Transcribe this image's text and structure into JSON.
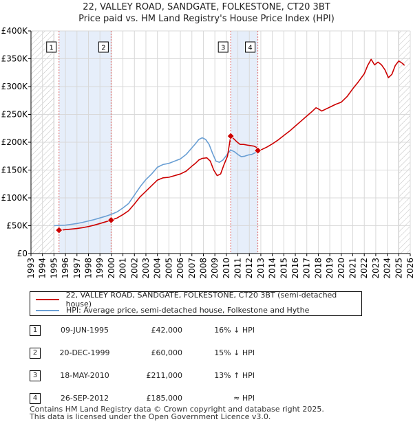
{
  "chart_data": {
    "type": "line",
    "title": "22, VALLEY ROAD, SANDGATE, FOLKESTONE, CT20 3BT",
    "subtitle": "Price paid vs. HM Land Registry's House Price Index (HPI)",
    "xlabel": "",
    "ylabel": "",
    "xlim": [
      1993,
      2026
    ],
    "ylim": [
      0,
      400000
    ],
    "x_ticks": [
      "1993",
      "1994",
      "1995",
      "1996",
      "1997",
      "1998",
      "1999",
      "2000",
      "2001",
      "2002",
      "2003",
      "2004",
      "2005",
      "2006",
      "2007",
      "2008",
      "2009",
      "2010",
      "2011",
      "2012",
      "2013",
      "2014",
      "2015",
      "2016",
      "2017",
      "2018",
      "2019",
      "2020",
      "2021",
      "2022",
      "2023",
      "2024",
      "2025",
      "2026"
    ],
    "y_ticks": [
      {
        "value": 0,
        "label": "£0"
      },
      {
        "value": 50000,
        "label": "£50K"
      },
      {
        "value": 100000,
        "label": "£100K"
      },
      {
        "value": 150000,
        "label": "£150K"
      },
      {
        "value": 200000,
        "label": "£200K"
      },
      {
        "value": 250000,
        "label": "£250K"
      },
      {
        "value": 300000,
        "label": "£300K"
      },
      {
        "value": 350000,
        "label": "£350K"
      },
      {
        "value": 400000,
        "label": "£400K"
      }
    ],
    "grid": true,
    "hatched_periods": [
      [
        1993,
        1995.0
      ],
      [
        2025.0,
        2026
      ]
    ],
    "shaded_periods": [
      [
        1995.44,
        1999.97
      ],
      [
        2010.38,
        2012.74
      ]
    ],
    "series": [
      {
        "name": "22, VALLEY ROAD, SANDGATE, FOLKESTONE, CT20 3BT (semi-detached house)",
        "color": "#cc0000",
        "x": [
          1995.44,
          1995.8,
          1996.0,
          1996.5,
          1997.0,
          1997.5,
          1998.0,
          1998.5,
          1999.0,
          1999.5,
          1999.97,
          2000.5,
          2001.0,
          2001.5,
          2002.0,
          2002.5,
          2003.0,
          2003.5,
          2004.0,
          2004.5,
          2005.0,
          2005.5,
          2006.0,
          2006.5,
          2007.0,
          2007.3,
          2007.6,
          2007.9,
          2008.3,
          2008.6,
          2008.9,
          2009.2,
          2009.5,
          2009.8,
          2010.1,
          2010.38,
          2010.6,
          2010.9,
          2011.2,
          2011.5,
          2011.8,
          2012.1,
          2012.4,
          2012.6,
          2012.74,
          2013.0,
          2013.5,
          2014.0,
          2014.5,
          2015.0,
          2015.5,
          2016.0,
          2016.5,
          2017.0,
          2017.5,
          2017.8,
          2018.0,
          2018.3,
          2018.6,
          2019.0,
          2019.5,
          2020.0,
          2020.5,
          2021.0,
          2021.5,
          2022.0,
          2022.3,
          2022.6,
          2022.9,
          2023.2,
          2023.5,
          2023.8,
          2024.1,
          2024.4,
          2024.7,
          2025.0,
          2025.3,
          2025.5
        ],
        "y": [
          42000,
          42500,
          43000,
          44000,
          45000,
          46500,
          48500,
          51000,
          54000,
          57000,
          60000,
          64000,
          70000,
          77000,
          89000,
          102000,
          112000,
          122000,
          132000,
          136000,
          137000,
          140000,
          143000,
          148000,
          157000,
          162000,
          168000,
          171000,
          172000,
          166000,
          150000,
          140000,
          143000,
          160000,
          175000,
          211000,
          207000,
          201000,
          196000,
          196000,
          195000,
          194000,
          193000,
          191000,
          185000,
          186000,
          191000,
          197000,
          204000,
          212000,
          220000,
          229000,
          238000,
          247000,
          256000,
          262000,
          260000,
          256000,
          259000,
          263000,
          268000,
          272000,
          282000,
          296000,
          309000,
          323000,
          338000,
          349000,
          339000,
          344000,
          339000,
          330000,
          316000,
          322000,
          338000,
          346000,
          342000,
          338000
        ]
      },
      {
        "name": "HPI: Average price, semi-detached house, Folkestone and Hythe",
        "color": "#6a9fd4",
        "x": [
          1995.0,
          1995.5,
          1996.0,
          1996.5,
          1997.0,
          1997.5,
          1998.0,
          1998.5,
          1999.0,
          1999.5,
          2000.0,
          2000.5,
          2001.0,
          2001.5,
          2002.0,
          2002.5,
          2003.0,
          2003.5,
          2004.0,
          2004.5,
          2005.0,
          2005.5,
          2006.0,
          2006.5,
          2007.0,
          2007.3,
          2007.6,
          2007.9,
          2008.2,
          2008.5,
          2008.8,
          2009.1,
          2009.4,
          2009.7,
          2010.0,
          2010.38,
          2010.7,
          2011.0,
          2011.3,
          2011.6,
          2011.9,
          2012.2,
          2012.5,
          2012.74
        ],
        "y": [
          50000,
          50500,
          51000,
          52500,
          54000,
          56000,
          58500,
          61000,
          64000,
          67000,
          70500,
          75000,
          82000,
          90000,
          105000,
          120000,
          133000,
          143000,
          155000,
          160000,
          162000,
          166000,
          170000,
          178000,
          190000,
          197000,
          205000,
          208000,
          205000,
          196000,
          180000,
          166000,
          164000,
          168000,
          176000,
          186000,
          183000,
          178000,
          174000,
          175000,
          177000,
          178000,
          181000,
          185000
        ]
      }
    ],
    "sales": [
      {
        "num": "1",
        "x": 1995.44,
        "price": 42000
      },
      {
        "num": "2",
        "x": 1999.97,
        "price": 60000
      },
      {
        "num": "3",
        "x": 2010.38,
        "price": 211000
      },
      {
        "num": "4",
        "x": 2012.74,
        "price": 185000
      }
    ]
  },
  "legend": {
    "property_label": "22, VALLEY ROAD, SANDGATE, FOLKESTONE, CT20 3BT (semi-detached house)",
    "hpi_label": "HPI: Average price, semi-detached house, Folkestone and Hythe"
  },
  "sales_table": [
    {
      "num": "1",
      "date": "09-JUN-1995",
      "price": "£42,000",
      "relation": "16% ↓ HPI"
    },
    {
      "num": "2",
      "date": "20-DEC-1999",
      "price": "£60,000",
      "relation": "15% ↓ HPI"
    },
    {
      "num": "3",
      "date": "18-MAY-2010",
      "price": "£211,000",
      "relation": "13% ↑ HPI"
    },
    {
      "num": "4",
      "date": "26-SEP-2012",
      "price": "£185,000",
      "relation": "≈ HPI"
    }
  ],
  "footer": {
    "line1": "Contains HM Land Registry data © Crown copyright and database right 2025.",
    "line2": "This data is licensed under the Open Government Licence v3.0."
  },
  "colors": {
    "property": "#cc0000",
    "hpi": "#6a9fd4",
    "shade": "#e6eefa",
    "grid": "#d8d8d8"
  }
}
